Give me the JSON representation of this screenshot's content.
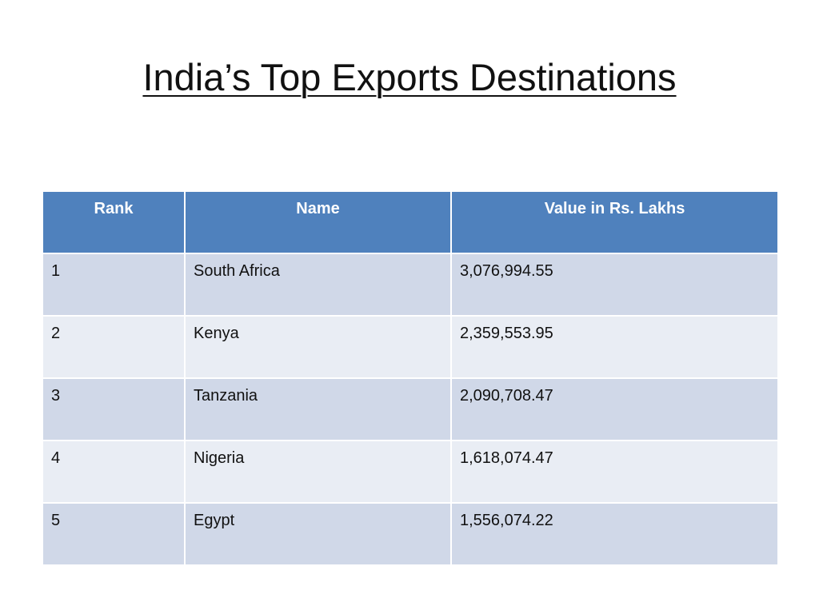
{
  "slide": {
    "title": "India’s Top Exports Destinations"
  },
  "table": {
    "headers": [
      "Rank",
      "Name",
      "Value in Rs. Lakhs"
    ],
    "rows": [
      {
        "rank": "1",
        "name": "South Africa",
        "value": "3,076,994.55"
      },
      {
        "rank": "2",
        "name": "Kenya",
        "value": "2,359,553.95"
      },
      {
        "rank": "3",
        "name": "Tanzania",
        "value": "2,090,708.47"
      },
      {
        "rank": "4",
        "name": "Nigeria",
        "value": "1,618,074.47"
      },
      {
        "rank": "5",
        "name": "Egypt",
        "value": "1,556,074.22"
      }
    ]
  },
  "colors": {
    "header_bg": "#4f81bd",
    "row_dark": "#d0d8e8",
    "row_light": "#e9edf4"
  }
}
